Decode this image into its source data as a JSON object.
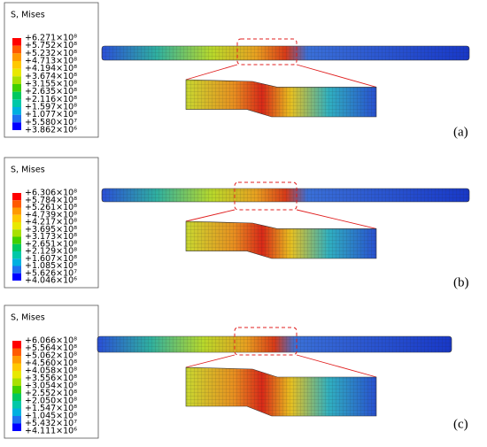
{
  "panels": [
    {
      "title": "S, Mises",
      "tag": "(a)",
      "labels": [
        "+6.271×10⁸",
        "+5.752×10⁸",
        "+5.232×10⁸",
        "+4.713×10⁸",
        "+4.194×10⁸",
        "+3.674×10⁸",
        "+3.155×10⁸",
        "+2.635×10⁸",
        "+2.116×10⁸",
        "+1.597×10⁸",
        "+1.077×10⁸",
        "+5.580×10⁷",
        "+3.862×10⁶"
      ]
    },
    {
      "title": "S, Mises",
      "tag": "(b)",
      "labels": [
        "+6.306×10⁸",
        "+5.784×10⁸",
        "+5.261×10⁸",
        "+4.739×10⁸",
        "+4.217×10⁸",
        "+3.695×10⁸",
        "+3.173×10⁸",
        "+2.651×10⁸",
        "+2.129×10⁸",
        "+1.607×10⁸",
        "+1.085×10⁸",
        "+5.626×10⁷",
        "+4.046×10⁶"
      ]
    },
    {
      "title": "S, Mises",
      "tag": "(c)",
      "labels": [
        "+6.066×10⁸",
        "+5.564×10⁸",
        "+5.062×10⁸",
        "+4.560×10⁸",
        "+4.058×10⁸",
        "+3.556×10⁸",
        "+3.054×10⁸",
        "+2.552×10⁸",
        "+2.050×10⁸",
        "+1.547×10⁸",
        "+1.045×10⁸",
        "+5.432×10⁷",
        "+4.111×10⁶"
      ]
    }
  ]
}
